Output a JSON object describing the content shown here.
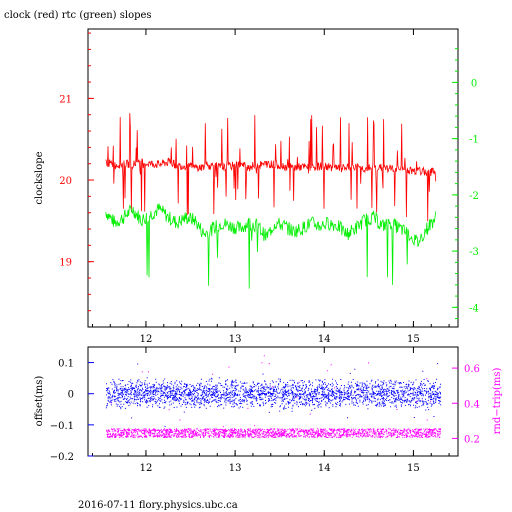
{
  "title": "clock (red) rtc (green) slopes",
  "footer": "2016-07-11 flory.physics.ubc.ca",
  "colors": {
    "clock": "#ff0000",
    "rtc": "#00ee00",
    "offset": "#0000ff",
    "roundtrip": "#ff00ff",
    "axis": "#000000"
  },
  "chart_data": [
    {
      "type": "line",
      "ylabel": "clockslope",
      "y2label": "",
      "xlim": [
        11.35,
        15.5
      ],
      "ylim": [
        18.2,
        21.85
      ],
      "y2lim": [
        -4.35,
        0.95
      ],
      "xticks": [
        "12",
        "13",
        "14",
        "15"
      ],
      "yticks": [
        "19",
        "20",
        "21"
      ],
      "y2ticks": [
        "-4",
        "-3",
        "-2",
        "-1",
        "0"
      ],
      "series": [
        {
          "axis": "left",
          "x": [
            11.55,
            11.65,
            11.75,
            11.85,
            11.95,
            12.05,
            12.15,
            12.25,
            12.35,
            12.45,
            12.55,
            12.65,
            12.75,
            12.85,
            12.95,
            13.05,
            13.15,
            13.25,
            13.35,
            13.45,
            13.55,
            13.65,
            13.75,
            13.85,
            13.95,
            14.05,
            14.15,
            14.25,
            14.35,
            14.45,
            14.55,
            14.65,
            14.75,
            14.85,
            14.95,
            15.05,
            15.15,
            15.25
          ],
          "values": [
            20.22,
            20.18,
            20.2,
            20.19,
            20.21,
            20.2,
            20.19,
            20.22,
            20.18,
            20.17,
            20.15,
            20.16,
            20.18,
            20.15,
            20.17,
            20.19,
            20.16,
            20.18,
            20.2,
            20.19,
            20.17,
            20.15,
            20.16,
            20.15,
            20.17,
            20.16,
            20.14,
            20.15,
            20.16,
            20.14,
            20.15,
            20.15,
            20.14,
            20.13,
            20.12,
            20.11,
            20.1,
            20.1
          ]
        },
        {
          "axis": "right",
          "x": [
            11.55,
            11.65,
            11.75,
            11.85,
            11.95,
            12.05,
            12.15,
            12.25,
            12.35,
            12.45,
            12.55,
            12.65,
            12.75,
            12.85,
            12.95,
            13.05,
            13.15,
            13.25,
            13.35,
            13.45,
            13.55,
            13.65,
            13.75,
            13.85,
            13.95,
            14.05,
            14.15,
            14.25,
            14.35,
            14.45,
            14.55,
            14.65,
            14.75,
            14.85,
            14.95,
            15.05,
            15.15,
            15.25
          ],
          "values": [
            -2.3,
            -2.5,
            -2.4,
            -2.25,
            -2.45,
            -2.35,
            -2.25,
            -2.4,
            -2.5,
            -2.4,
            -2.45,
            -2.7,
            -2.6,
            -2.5,
            -2.55,
            -2.6,
            -2.5,
            -2.55,
            -2.75,
            -2.5,
            -2.55,
            -2.65,
            -2.6,
            -2.5,
            -2.55,
            -2.5,
            -2.55,
            -2.7,
            -2.6,
            -2.45,
            -2.4,
            -2.55,
            -2.5,
            -2.6,
            -2.7,
            -2.85,
            -2.6,
            -2.4
          ]
        }
      ]
    },
    {
      "type": "scatter",
      "ylabel": "offset(ms)",
      "y2label": "rnd−trip(ms)",
      "xlim": [
        11.35,
        15.5
      ],
      "ylim": [
        -0.2,
        0.15
      ],
      "y2lim": [
        0.1,
        0.72
      ],
      "xticks": [
        "12",
        "13",
        "14",
        "15"
      ],
      "yticks": [
        "0.1",
        "0",
        "−0.1",
        "−0.2"
      ],
      "y2ticks": [
        "0.6",
        "0.4",
        "0.2"
      ],
      "series": [
        {
          "axis": "left",
          "xrange": [
            11.55,
            15.3
          ],
          "center": 0.0,
          "spread": 0.05
        },
        {
          "axis": "right",
          "xrange": [
            11.55,
            15.3
          ],
          "center": 0.23,
          "spread": 0.05
        }
      ]
    }
  ]
}
